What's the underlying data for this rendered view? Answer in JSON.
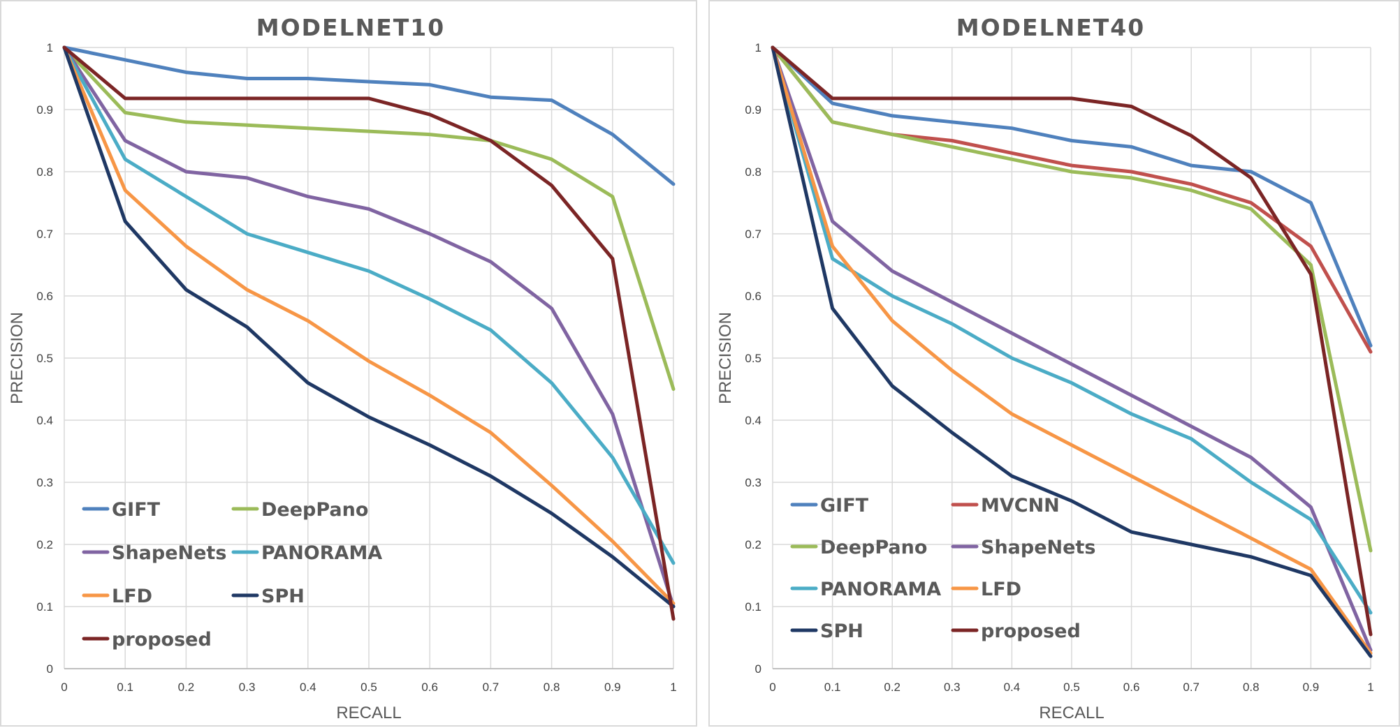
{
  "chart_data": [
    {
      "type": "line",
      "title": "MODELNET10",
      "xlabel": "RECALL",
      "ylabel": "PRECISION",
      "xlim": [
        0,
        1
      ],
      "ylim": [
        0,
        1
      ],
      "x_ticks": [
        "0",
        "0.1",
        "0.2",
        "0.3",
        "0.4",
        "0.5",
        "0.6",
        "0.7",
        "0.8",
        "0.9",
        "1"
      ],
      "y_ticks": [
        "0",
        "0.1",
        "0.2",
        "0.3",
        "0.4",
        "0.5",
        "0.6",
        "0.7",
        "0.8",
        "0.9",
        "1"
      ],
      "grid": true,
      "legend_position": "bottom-left",
      "x": [
        0,
        0.1,
        0.2,
        0.3,
        0.4,
        0.5,
        0.6,
        0.7,
        0.8,
        0.9,
        1
      ],
      "series": [
        {
          "name": "GIFT",
          "color": "#4f81bd",
          "values": [
            1.0,
            0.98,
            0.96,
            0.95,
            0.95,
            0.945,
            0.94,
            0.92,
            0.915,
            0.86,
            0.78
          ]
        },
        {
          "name": "DeepPano",
          "color": "#9bbb59",
          "values": [
            1.0,
            0.895,
            0.88,
            0.875,
            0.87,
            0.865,
            0.86,
            0.85,
            0.82,
            0.76,
            0.45
          ]
        },
        {
          "name": "ShapeNets",
          "color": "#8064a2",
          "values": [
            1.0,
            0.85,
            0.8,
            0.79,
            0.76,
            0.74,
            0.7,
            0.655,
            0.58,
            0.41,
            0.1
          ]
        },
        {
          "name": "PANORAMA",
          "color": "#4bacc6",
          "values": [
            1.0,
            0.82,
            0.76,
            0.7,
            0.67,
            0.64,
            0.595,
            0.545,
            0.46,
            0.34,
            0.17
          ]
        },
        {
          "name": "LFD",
          "color": "#f79646",
          "values": [
            1.0,
            0.77,
            0.68,
            0.61,
            0.56,
            0.495,
            0.44,
            0.38,
            0.295,
            0.205,
            0.105
          ]
        },
        {
          "name": "SPH",
          "color": "#1f3864",
          "values": [
            1.0,
            0.72,
            0.61,
            0.55,
            0.46,
            0.405,
            0.36,
            0.31,
            0.25,
            0.18,
            0.1
          ]
        },
        {
          "name": "proposed",
          "color": "#7b2525",
          "values": [
            1.0,
            0.918,
            0.918,
            0.918,
            0.918,
            0.918,
            0.892,
            0.85,
            0.778,
            0.66,
            0.08
          ]
        }
      ]
    },
    {
      "type": "line",
      "title": "MODELNET40",
      "xlabel": "RECALL",
      "ylabel": "PRECISION",
      "xlim": [
        0,
        1
      ],
      "ylim": [
        0,
        1
      ],
      "x_ticks": [
        "0",
        "0.1",
        "0.2",
        "0.3",
        "0.4",
        "0.5",
        "0.6",
        "0.7",
        "0.8",
        "0.9",
        "1"
      ],
      "y_ticks": [
        "0",
        "0.1",
        "0.2",
        "0.3",
        "0.4",
        "0.5",
        "0.6",
        "0.7",
        "0.8",
        "0.9",
        "1"
      ],
      "grid": true,
      "legend_position": "bottom-left",
      "x": [
        0,
        0.1,
        0.2,
        0.3,
        0.4,
        0.5,
        0.6,
        0.7,
        0.8,
        0.9,
        1
      ],
      "series": [
        {
          "name": "GIFT",
          "color": "#4f81bd",
          "values": [
            1.0,
            0.91,
            0.89,
            0.88,
            0.87,
            0.85,
            0.84,
            0.81,
            0.8,
            0.75,
            0.52
          ]
        },
        {
          "name": "MVCNN",
          "color": "#c0504d",
          "values": [
            1.0,
            0.88,
            0.86,
            0.85,
            0.83,
            0.81,
            0.8,
            0.78,
            0.75,
            0.68,
            0.51
          ]
        },
        {
          "name": "DeepPano",
          "color": "#9bbb59",
          "values": [
            1.0,
            0.88,
            0.86,
            0.84,
            0.82,
            0.8,
            0.79,
            0.77,
            0.74,
            0.65,
            0.19
          ]
        },
        {
          "name": "ShapeNets",
          "color": "#8064a2",
          "values": [
            1.0,
            0.72,
            0.64,
            0.59,
            0.54,
            0.49,
            0.44,
            0.39,
            0.34,
            0.26,
            0.03
          ]
        },
        {
          "name": "PANORAMA",
          "color": "#4bacc6",
          "values": [
            1.0,
            0.66,
            0.6,
            0.555,
            0.5,
            0.46,
            0.41,
            0.37,
            0.3,
            0.24,
            0.09
          ]
        },
        {
          "name": "LFD",
          "color": "#f79646",
          "values": [
            1.0,
            0.68,
            0.56,
            0.48,
            0.41,
            0.36,
            0.31,
            0.26,
            0.21,
            0.16,
            0.025
          ]
        },
        {
          "name": "SPH",
          "color": "#1f3864",
          "values": [
            1.0,
            0.58,
            0.455,
            0.38,
            0.31,
            0.27,
            0.22,
            0.2,
            0.18,
            0.15,
            0.02
          ]
        },
        {
          "name": "proposed",
          "color": "#7b2525",
          "values": [
            1.0,
            0.918,
            0.918,
            0.918,
            0.918,
            0.918,
            0.905,
            0.858,
            0.79,
            0.635,
            0.055
          ]
        }
      ]
    }
  ]
}
